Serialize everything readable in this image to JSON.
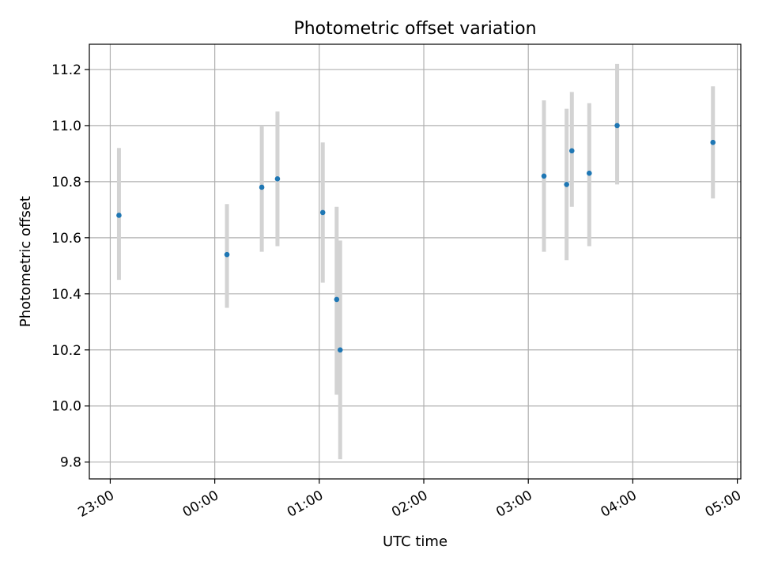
{
  "chart_data": {
    "type": "scatter",
    "title": "Photometric offset variation",
    "xlabel": "UTC time",
    "ylabel": "Photometric offset",
    "x_ticks": [
      "23:00",
      "00:00",
      "01:00",
      "02:00",
      "03:00",
      "04:00",
      "05:00"
    ],
    "y_ticks": [
      "9.8",
      "10.0",
      "10.2",
      "10.4",
      "10.6",
      "10.8",
      "11.0",
      "11.2"
    ],
    "xlim": [
      "22:48",
      "05:02"
    ],
    "ylim": [
      9.74,
      11.29
    ],
    "grid": true,
    "marker_color": "#1f77b4",
    "errorbar_color": "#d3d3d3",
    "points": [
      {
        "x": "23:05",
        "y": 10.68,
        "yerr_low": 10.45,
        "yerr_high": 10.92
      },
      {
        "x": "00:07",
        "y": 10.54,
        "yerr_low": 10.35,
        "yerr_high": 10.72
      },
      {
        "x": "00:27",
        "y": 10.78,
        "yerr_low": 10.55,
        "yerr_high": 11.0
      },
      {
        "x": "00:36",
        "y": 10.81,
        "yerr_low": 10.57,
        "yerr_high": 11.05
      },
      {
        "x": "01:02",
        "y": 10.69,
        "yerr_low": 10.44,
        "yerr_high": 10.94
      },
      {
        "x": "01:10",
        "y": 10.38,
        "yerr_low": 10.04,
        "yerr_high": 10.71
      },
      {
        "x": "01:12",
        "y": 10.2,
        "yerr_low": 9.81,
        "yerr_high": 10.59
      },
      {
        "x": "03:09",
        "y": 10.82,
        "yerr_low": 10.55,
        "yerr_high": 11.09
      },
      {
        "x": "03:22",
        "y": 10.79,
        "yerr_low": 10.52,
        "yerr_high": 11.06
      },
      {
        "x": "03:25",
        "y": 10.91,
        "yerr_low": 10.71,
        "yerr_high": 11.12
      },
      {
        "x": "03:35",
        "y": 10.83,
        "yerr_low": 10.57,
        "yerr_high": 11.08
      },
      {
        "x": "03:51",
        "y": 11.0,
        "yerr_low": 10.79,
        "yerr_high": 11.22
      },
      {
        "x": "04:46",
        "y": 10.94,
        "yerr_low": 10.74,
        "yerr_high": 11.14
      }
    ]
  }
}
